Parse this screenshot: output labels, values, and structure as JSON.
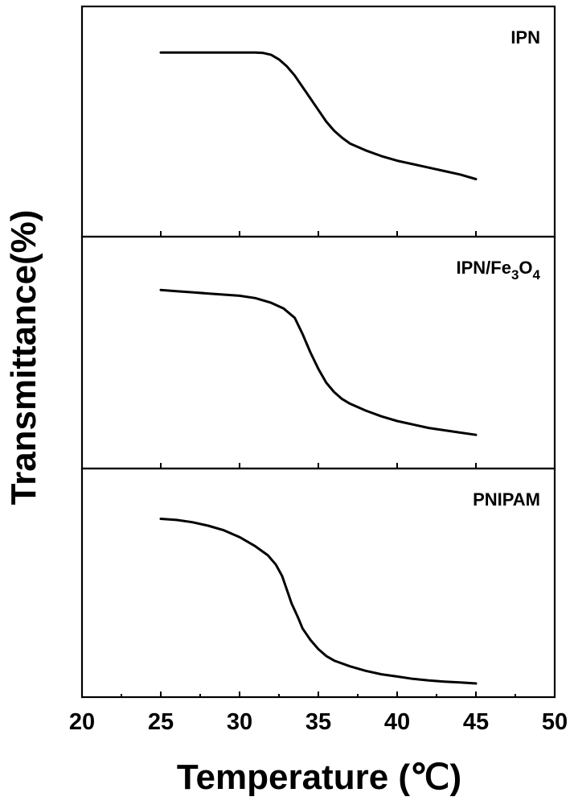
{
  "chart_data": {
    "type": "line",
    "xlabel": "Temperature (℃)",
    "ylabel": "Transmittance(%)",
    "xlim": [
      20,
      50
    ],
    "ylim": [
      0,
      100
    ],
    "x_ticks": [
      "20",
      "25",
      "30",
      "35",
      "40",
      "45",
      "50"
    ],
    "grid": false,
    "panels": [
      {
        "label": "IPN",
        "label_parts": [
          {
            "t": "IPN",
            "sub": false
          }
        ],
        "points": [
          [
            25,
            80
          ],
          [
            26,
            80
          ],
          [
            28,
            80
          ],
          [
            30,
            80
          ],
          [
            31,
            80
          ],
          [
            31.5,
            79.8
          ],
          [
            32,
            79
          ],
          [
            32.5,
            77
          ],
          [
            33,
            74
          ],
          [
            33.5,
            70
          ],
          [
            34,
            65
          ],
          [
            34.5,
            60
          ],
          [
            35,
            55
          ],
          [
            35.5,
            50
          ],
          [
            36,
            46
          ],
          [
            36.5,
            43
          ],
          [
            37,
            40.5
          ],
          [
            38,
            37.5
          ],
          [
            39,
            35
          ],
          [
            40,
            33
          ],
          [
            41,
            31.5
          ],
          [
            42,
            30
          ],
          [
            43,
            28.5
          ],
          [
            44,
            27
          ],
          [
            45,
            25
          ]
        ]
      },
      {
        "label": "IPN/Fe3O4",
        "label_parts": [
          {
            "t": "IPN/Fe",
            "sub": false
          },
          {
            "t": "3",
            "sub": true
          },
          {
            "t": "O",
            "sub": false
          },
          {
            "t": "4",
            "sub": true
          }
        ],
        "points": [
          [
            25,
            77
          ],
          [
            26,
            76.5
          ],
          [
            27,
            76
          ],
          [
            28,
            75.5
          ],
          [
            29,
            75
          ],
          [
            30,
            74.5
          ],
          [
            31,
            73.5
          ],
          [
            32,
            71.5
          ],
          [
            32.8,
            69
          ],
          [
            33.5,
            65
          ],
          [
            34,
            58
          ],
          [
            34.5,
            50
          ],
          [
            35,
            43
          ],
          [
            35.5,
            37
          ],
          [
            36,
            33
          ],
          [
            36.5,
            30
          ],
          [
            37,
            28
          ],
          [
            38,
            25
          ],
          [
            39,
            22.5
          ],
          [
            40,
            20.5
          ],
          [
            41,
            19
          ],
          [
            42,
            17.5
          ],
          [
            43,
            16.5
          ],
          [
            44,
            15.5
          ],
          [
            45,
            14.5
          ]
        ]
      },
      {
        "label": "PNIPAM",
        "label_parts": [
          {
            "t": "PNIPAM",
            "sub": false
          }
        ],
        "points": [
          [
            25,
            78
          ],
          [
            26,
            77.5
          ],
          [
            27,
            76.5
          ],
          [
            28,
            75
          ],
          [
            29,
            73
          ],
          [
            30,
            70
          ],
          [
            31,
            66
          ],
          [
            31.8,
            62
          ],
          [
            32.3,
            58
          ],
          [
            32.7,
            53
          ],
          [
            33,
            47
          ],
          [
            33.3,
            41
          ],
          [
            33.7,
            35
          ],
          [
            34,
            30
          ],
          [
            34.5,
            25
          ],
          [
            35,
            21
          ],
          [
            35.5,
            18
          ],
          [
            36,
            16
          ],
          [
            37,
            13.5
          ],
          [
            38,
            11.5
          ],
          [
            39,
            10
          ],
          [
            40,
            9
          ],
          [
            41,
            8
          ],
          [
            42,
            7.3
          ],
          [
            43,
            6.8
          ],
          [
            44,
            6.4
          ],
          [
            45,
            6
          ]
        ]
      }
    ]
  }
}
